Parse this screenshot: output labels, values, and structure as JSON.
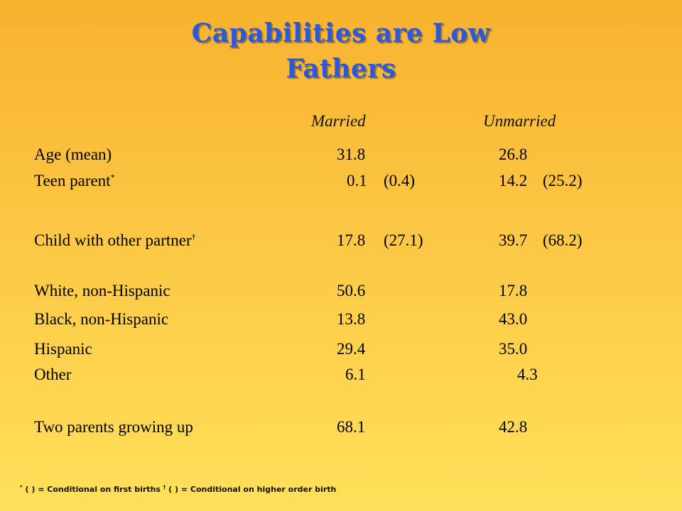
{
  "title": {
    "line1": "Capabilities are Low",
    "line2": "Fathers"
  },
  "columns": {
    "married": "Married",
    "unmarried": "Unmarried"
  },
  "rows": [
    {
      "label": "Age (mean)",
      "mark": "",
      "married": "31.8",
      "married_paren": "",
      "unmarried": "26.8",
      "unmarried_paren": ""
    },
    {
      "label": "Teen parent",
      "mark": "*",
      "married": "0.1",
      "married_paren": "(0.4)",
      "unmarried": "14.2",
      "unmarried_paren": "(25.2)"
    },
    {
      "label": "Child with other partner",
      "mark": "†",
      "married": "17.8",
      "married_paren": "(27.1)",
      "unmarried": "39.7",
      "unmarried_paren": "(68.2)"
    },
    {
      "label": "White, non-Hispanic",
      "mark": "",
      "married": "50.6",
      "married_paren": "",
      "unmarried": "17.8",
      "unmarried_paren": ""
    },
    {
      "label": "Black, non-Hispanic",
      "mark": "",
      "married": "13.8",
      "married_paren": "",
      "unmarried": "43.0",
      "unmarried_paren": ""
    },
    {
      "label": "Hispanic",
      "mark": "",
      "married": "29.4",
      "married_paren": "",
      "unmarried": "35.0",
      "unmarried_paren": ""
    },
    {
      "label": "Other",
      "mark": "",
      "married": "6.1",
      "married_paren": "",
      "unmarried": "4.3",
      "unmarried_paren": ""
    },
    {
      "label": "Two parents growing up",
      "mark": "",
      "married": "68.1",
      "married_paren": "",
      "unmarried": "42.8",
      "unmarried_paren": ""
    }
  ],
  "footnote": {
    "mark1": "*",
    "text1": " ( ) =  Conditional  on first births ",
    "mark2": "†",
    "text2": " ( ) = Conditional  on higher order birth"
  },
  "colors": {
    "title": "#2a58e0",
    "background_top": "#f8b22e",
    "background_bottom": "#ffe05a"
  }
}
